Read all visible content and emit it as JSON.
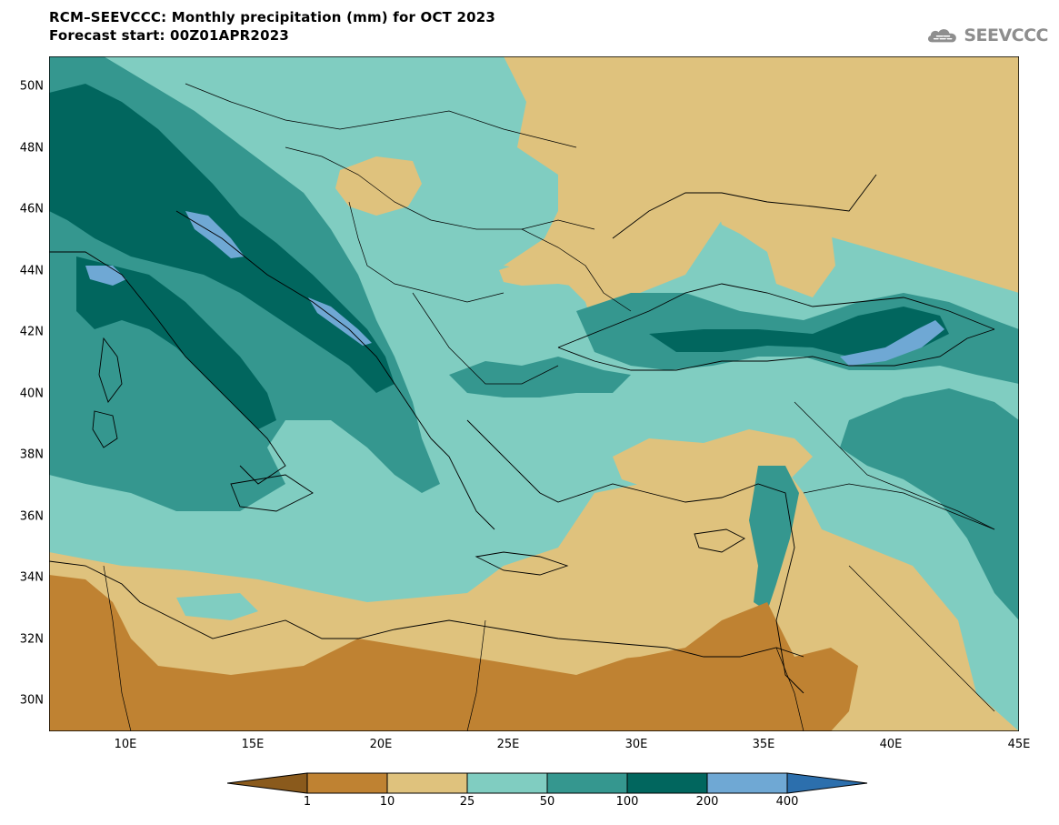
{
  "title": {
    "line1": "RCM–SEEVCCC: Monthly precipitation (mm) for OCT 2023",
    "line2": "Forecast start: 00Z01APR2023"
  },
  "logo": {
    "text": "SEEVCCC",
    "icon": "cloud-icon",
    "color": "#8e8e8e"
  },
  "map": {
    "extent": {
      "lon": [
        7,
        46
      ],
      "lat": [
        29,
        51
      ]
    },
    "lat_ticks": [
      "50N",
      "48N",
      "46N",
      "44N",
      "42N",
      "40N",
      "38N",
      "36N",
      "34N",
      "32N",
      "30N"
    ],
    "lon_ticks": [
      "10E",
      "15E",
      "20E",
      "25E",
      "30E",
      "35E",
      "40E",
      "45E"
    ]
  },
  "legend": {
    "labels": [
      "1",
      "10",
      "25",
      "50",
      "100",
      "200",
      "400"
    ],
    "colors": [
      "#8a5a1c",
      "#bf8232",
      "#dfc27d",
      "#80cdc1",
      "#35978f",
      "#01665e",
      "#6fa8d4",
      "#2c6fad"
    ]
  }
}
